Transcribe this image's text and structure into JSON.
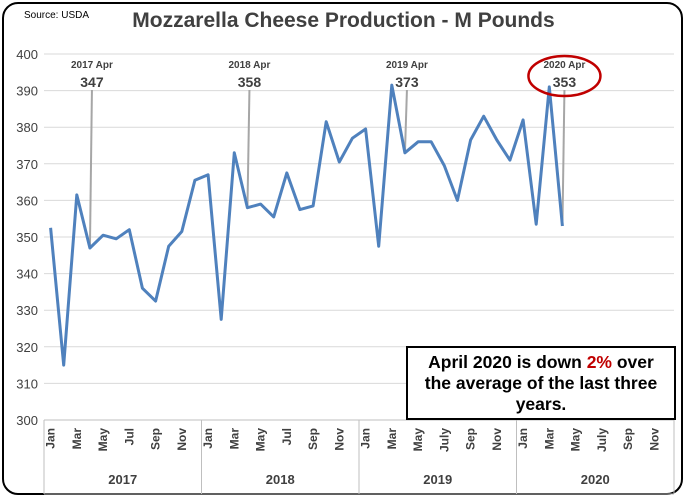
{
  "source": "Source: USDA",
  "chart_data": {
    "type": "line",
    "title": "Mozzarella Cheese Production - M Pounds",
    "ylim": [
      300,
      400
    ],
    "yticks": [
      300,
      310,
      320,
      330,
      340,
      350,
      360,
      370,
      380,
      390,
      400
    ],
    "grid": true,
    "month_labels": [
      "Jan",
      "Mar",
      "May",
      "Jul",
      "Sep",
      "Nov",
      "Jan",
      "Mar",
      "May",
      "Jul",
      "Sep",
      "Nov",
      "Jan",
      "Mar",
      "May",
      "July",
      "Sep",
      "Nov",
      "Jan",
      "Mar",
      "May",
      "July",
      "Sep",
      "Nov"
    ],
    "year_labels": [
      "2017",
      "2018",
      "2019",
      "2020"
    ],
    "series": [
      {
        "color": "#4f81bd",
        "values": [
          352.5,
          315,
          361.5,
          347,
          350.5,
          349.5,
          352,
          336,
          332.5,
          347.5,
          351.5,
          365.5,
          367,
          327.5,
          373,
          358,
          359,
          355.5,
          367.5,
          357.5,
          358.5,
          381.5,
          370.5,
          377,
          379.5,
          347.5,
          391.5,
          373,
          376,
          376,
          369.5,
          360,
          376.5,
          383,
          376.5,
          371,
          382,
          353.5,
          391,
          353
        ]
      }
    ],
    "annotations": [
      {
        "label": "2017 Apr",
        "value": "347",
        "index": 3
      },
      {
        "label": "2018 Apr",
        "value": "358",
        "index": 15
      },
      {
        "label": "2019 Apr",
        "value": "373",
        "index": 27
      },
      {
        "label": "2020 Apr",
        "value": "353",
        "index": 39,
        "circled": true
      }
    ]
  },
  "note": {
    "line1_pre": "April 2020 is down ",
    "line1_highlight": "2%",
    "line1_post": " over",
    "line2": "the average of the last three",
    "line3": "years."
  }
}
